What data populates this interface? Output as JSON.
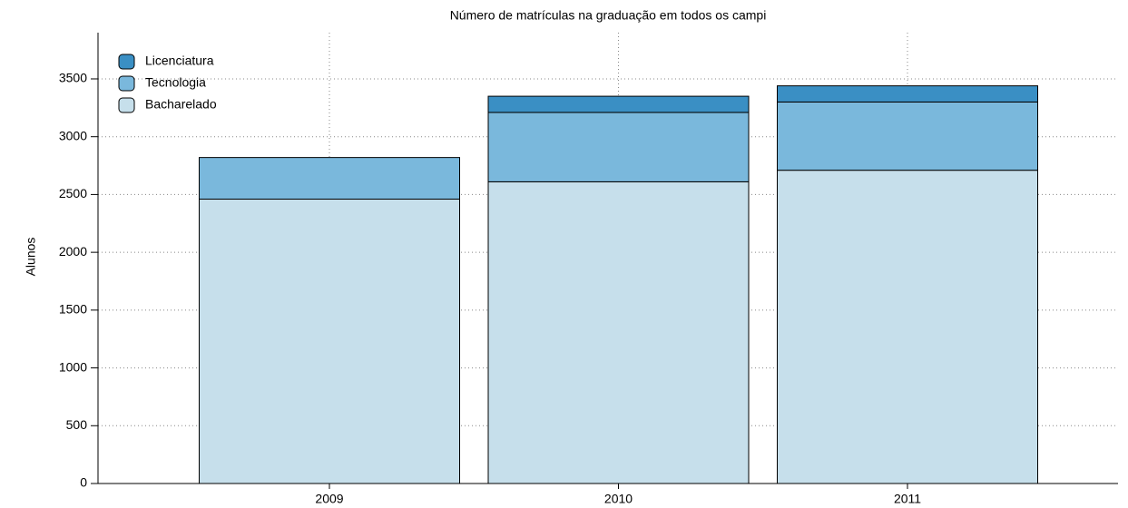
{
  "chart_data": {
    "type": "stacked_bar",
    "title": "Número de matrículas na graduação em todos os campi",
    "y_label": "Alunos",
    "categories": [
      "2009",
      "2010",
      "2011"
    ],
    "series": [
      {
        "name": "Bacharelado",
        "color": "#c6dfeb",
        "values": [
          2460,
          2610,
          2710
        ]
      },
      {
        "name": "Tecnologia",
        "color": "#7ab8dc",
        "values": [
          360,
          600,
          590
        ]
      },
      {
        "name": "Licenciatura",
        "color": "#3a8fc4",
        "values": [
          0,
          140,
          140
        ]
      }
    ],
    "ylim": [
      0,
      3900
    ],
    "yticks": [
      0,
      500,
      1000,
      1500,
      2000,
      2500,
      3000,
      3500
    ],
    "grid": true,
    "legend": "upper left"
  }
}
